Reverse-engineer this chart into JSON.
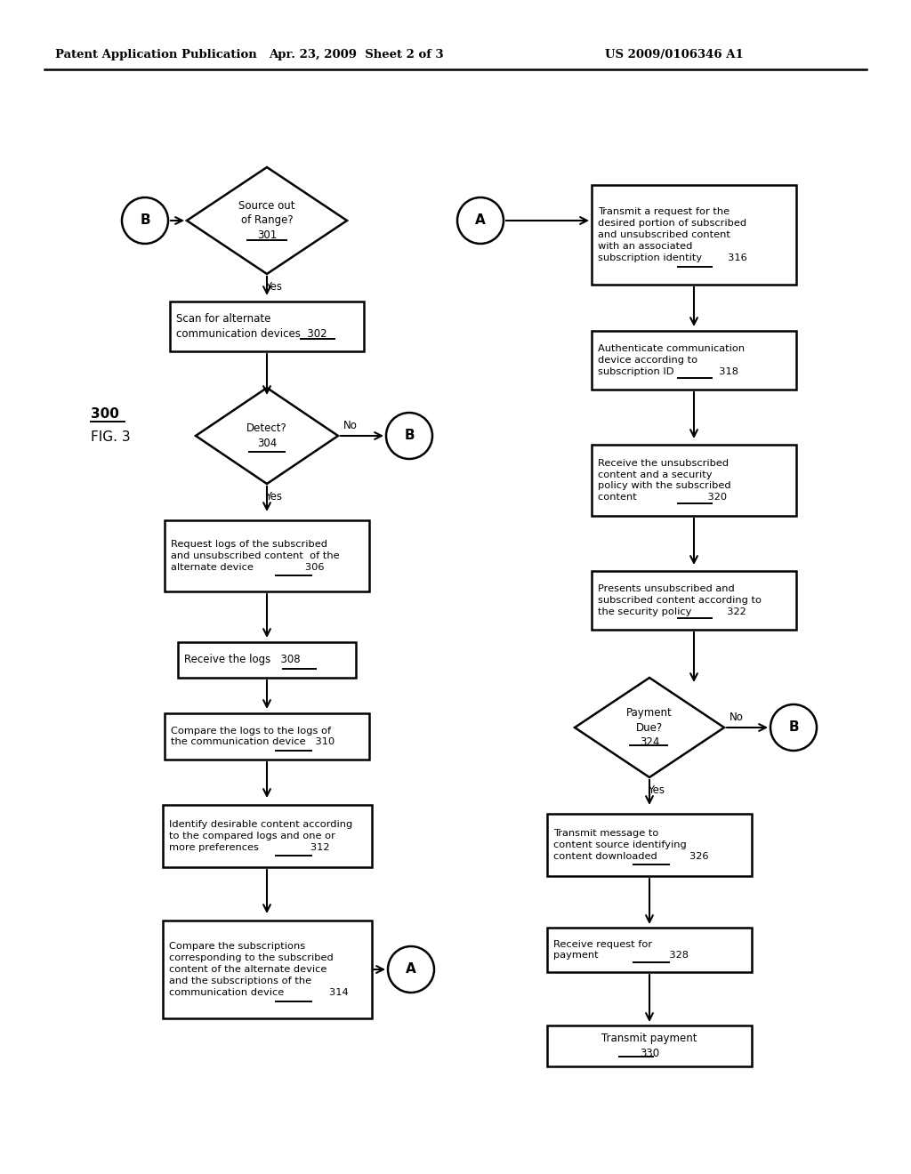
{
  "header_left": "Patent Application Publication",
  "header_center": "Apr. 23, 2009  Sheet 2 of 3",
  "header_right": "US 2009/0106346 A1",
  "bg_color": "#ffffff"
}
